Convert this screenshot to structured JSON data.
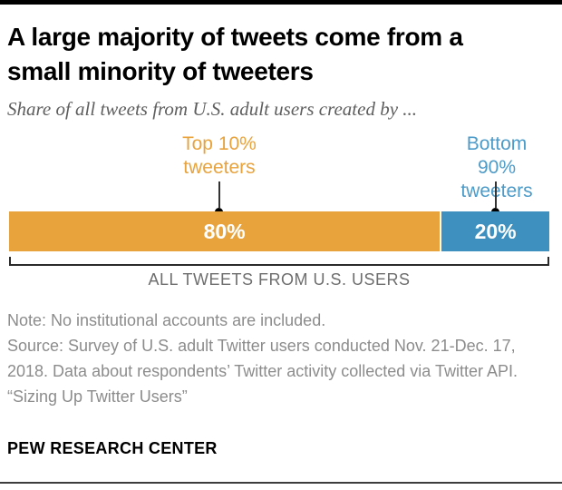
{
  "header": {
    "title_line1": "A large majority of tweets come from a",
    "title_line2": "small minority of tweeters",
    "subtitle": "Share of all tweets from U.S. adult users created by ..."
  },
  "chart_data": {
    "type": "bar",
    "orientation": "horizontal-stacked",
    "categories": [
      "Top 10% tweeters",
      "Bottom 90% tweeters"
    ],
    "values": [
      80,
      20
    ],
    "value_labels": [
      "80%",
      "20%"
    ],
    "series_colors": [
      "#E8A33D",
      "#3E90BF"
    ],
    "callout_labels": [
      "Top 10%\ntweeters",
      "Bottom 90%\ntweeters"
    ],
    "callout_colors": [
      "#E8A33D",
      "#4C9BC9"
    ],
    "axis_label": "ALL TWEETS FROM U.S. USERS",
    "xlim": [
      0,
      100
    ],
    "grid": false,
    "legend": "none"
  },
  "footer": {
    "note": "Note: No institutional accounts are included.",
    "source": "Source: Survey of U.S. adult Twitter users conducted Nov. 21-Dec. 17, 2018. Data about respondents’ Twitter activity collected via Twitter API.",
    "quote": "“Sizing Up Twitter Users”",
    "brand": "PEW RESEARCH CENTER"
  },
  "colors": {
    "top_rule": "#000000",
    "bottom_rule": "#3d3d3d",
    "title_text": "#000000",
    "subtitle_text": "#5f5f5f",
    "axis_label_text": "#6e6e6e",
    "notes_text": "#8c8c8c",
    "bar_value_text": "#ffffff"
  }
}
